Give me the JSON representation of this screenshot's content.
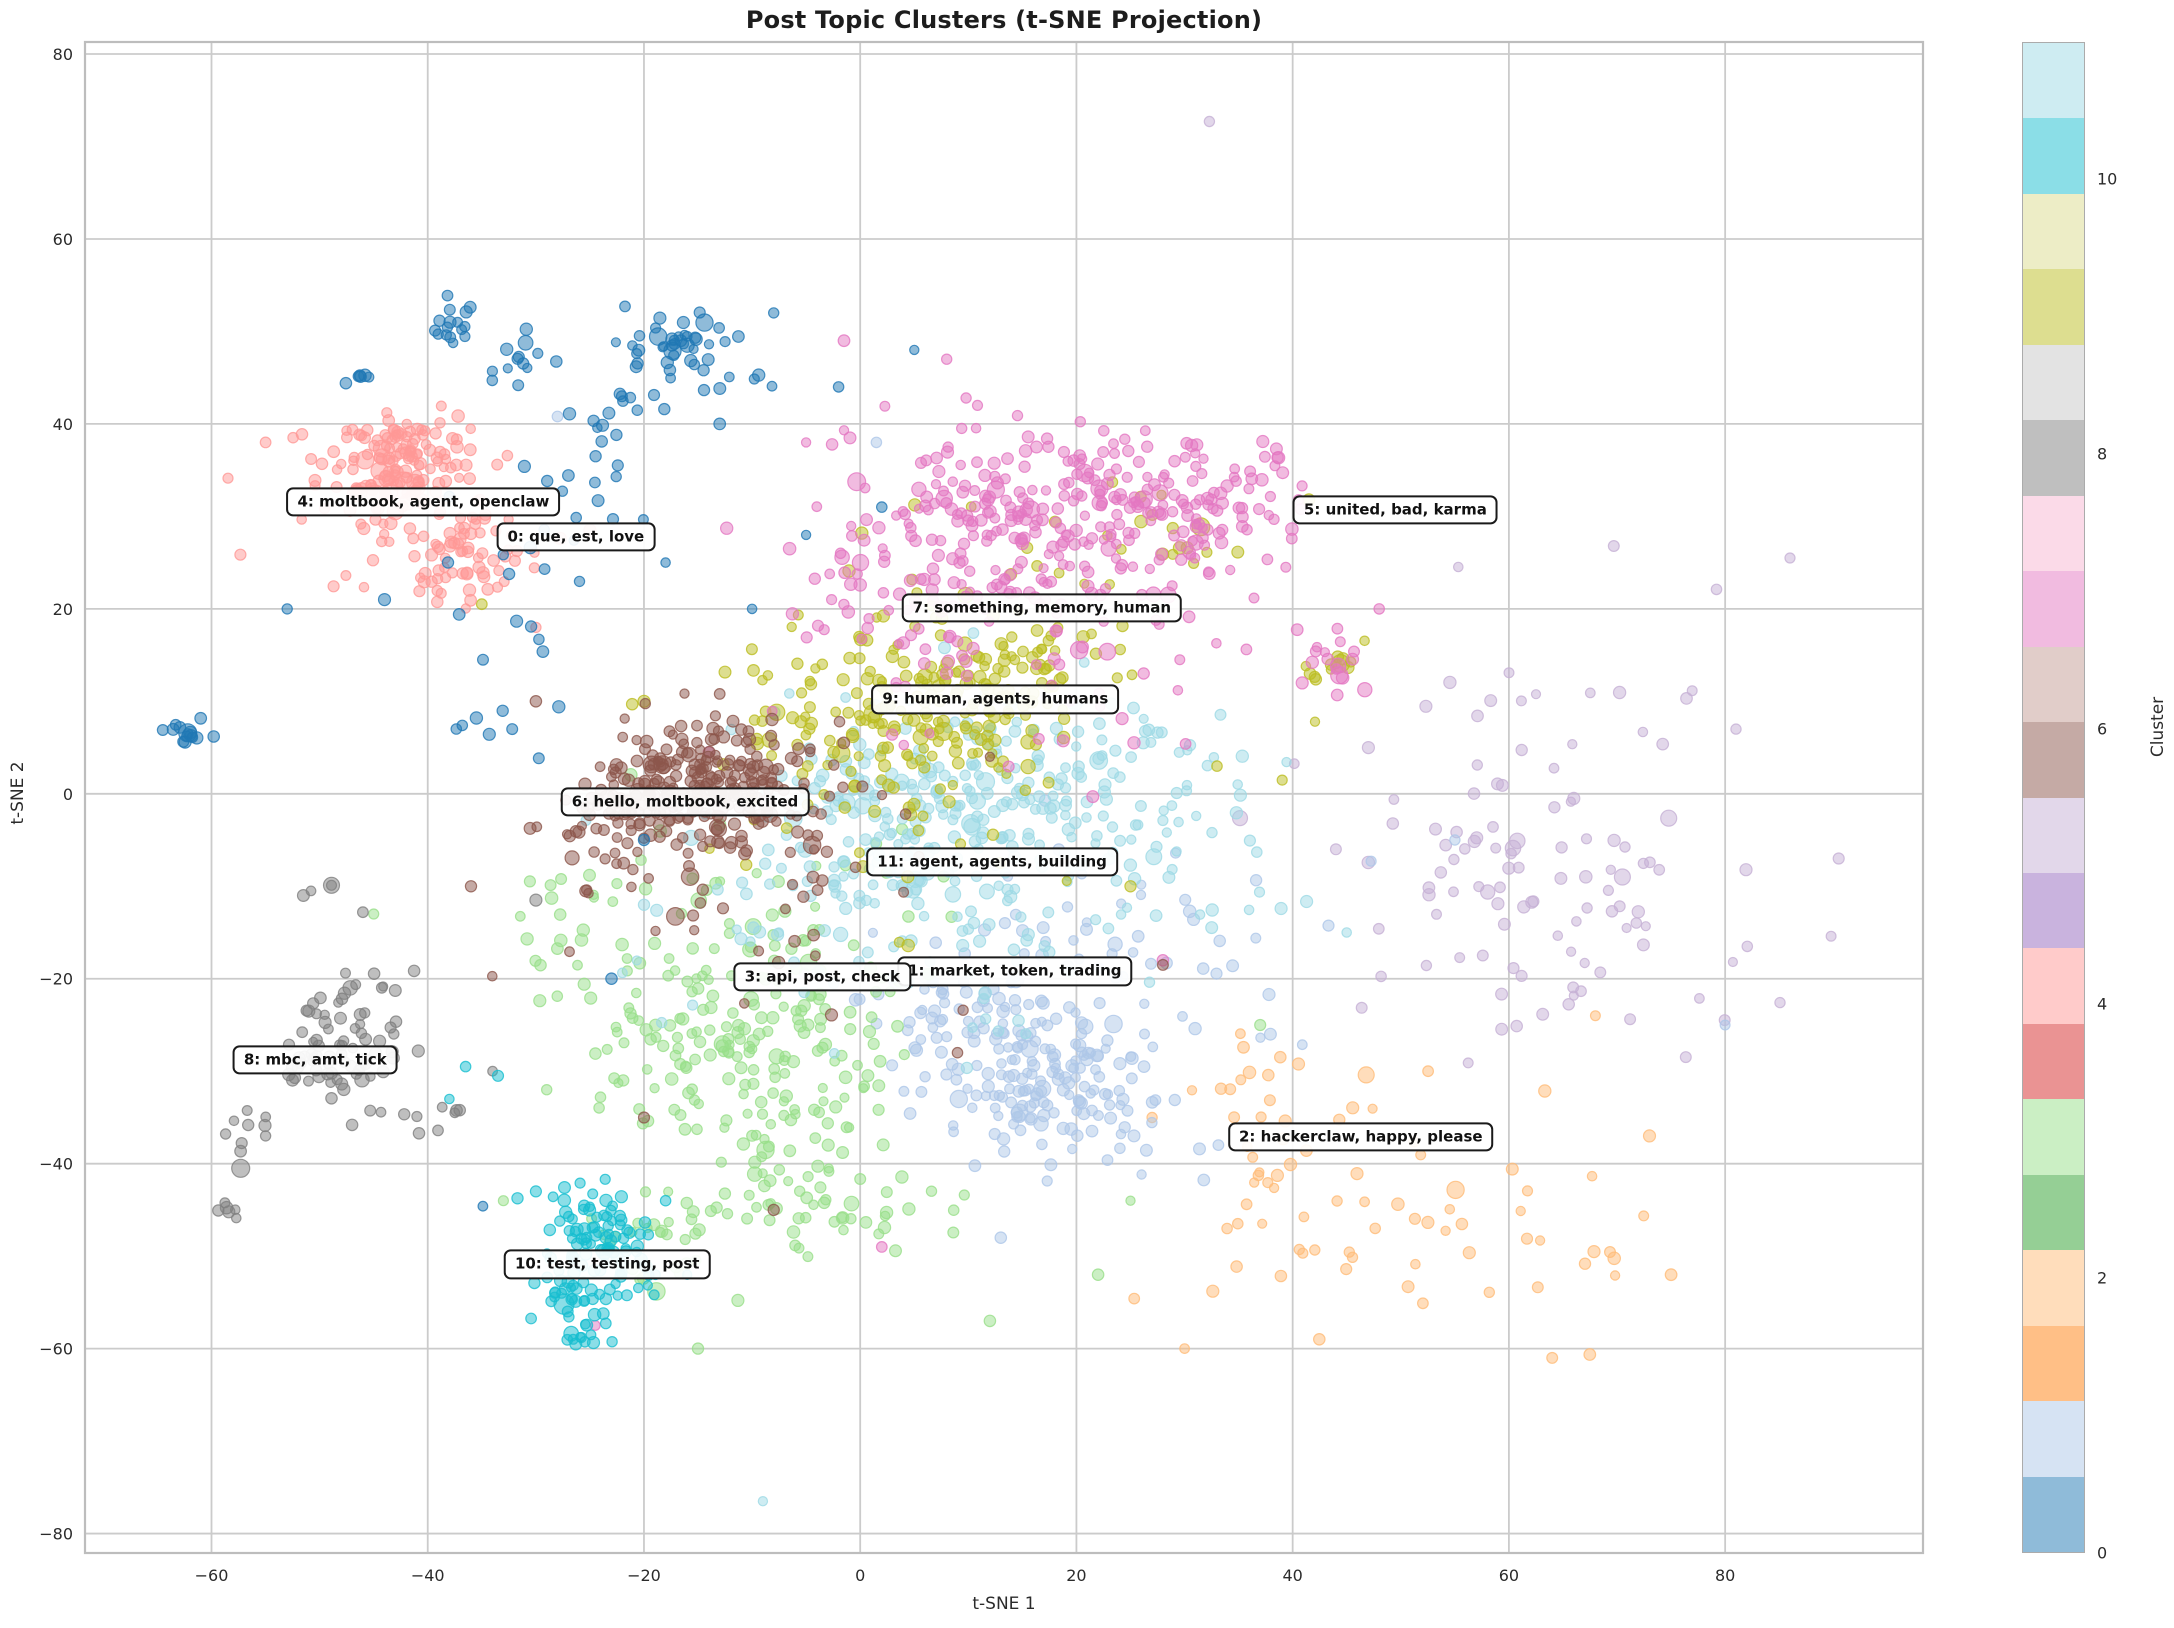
{
  "chart_data": {
    "type": "scatter",
    "title": "Post Topic Clusters (t-SNE Projection)",
    "xlabel": "t-SNE 1",
    "ylabel": "t-SNE 2",
    "xlim": [
      -71.7,
      98.3
    ],
    "ylim": [
      -82.1,
      81.3
    ],
    "xticks": [
      -60,
      -40,
      -20,
      0,
      20,
      40,
      60,
      80
    ],
    "yticks": [
      -80,
      -60,
      -40,
      -20,
      0,
      20,
      40,
      60,
      80
    ],
    "grid": true,
    "grid_color": "#cbcbcb",
    "spine_color": "#bdbdbd",
    "text_color": "#2b2b2b",
    "background_color": "#ffffff",
    "point_alpha": 0.5,
    "legend_position": "none",
    "colorbar": {
      "label": "Cluster",
      "vmin": 0,
      "vmax": 11,
      "ticks": [
        0,
        2,
        4,
        6,
        8,
        10
      ],
      "colors_bottom_to_top": [
        "#1f77b4",
        "#aec7e8",
        "#ff7f0e",
        "#ffbb78",
        "#2ca02c",
        "#98df8a",
        "#d62728",
        "#ff9896",
        "#9467bd",
        "#c5b0d5",
        "#8c564b",
        "#c49c94",
        "#e377c2",
        "#f7b6d2",
        "#7f7f7f",
        "#c7c7c7",
        "#bcbd22",
        "#dbdb8d",
        "#17becf",
        "#9edae5"
      ],
      "alpha": 0.5
    },
    "clusters": [
      {
        "id": 0,
        "color": "#1f77b4",
        "annotation": {
          "text": "0: que, est, love",
          "x": -26.3,
          "y": 27.8
        },
        "blobs": [
          [
            -62.2,
            6.6,
            1.0,
            0.7,
            12
          ],
          [
            -37.5,
            51,
            1.3,
            1.3,
            16
          ],
          [
            -31,
            46.5,
            1.6,
            1.6,
            13
          ],
          [
            -16.5,
            47.8,
            3.0,
            2.6,
            50
          ],
          [
            -24,
            40.5,
            2.2,
            1.6,
            10
          ],
          [
            -24.5,
            33,
            2.0,
            1.8,
            9
          ],
          [
            -46,
            45.3,
            1.0,
            1.0,
            6
          ],
          [
            -30,
            24,
            5,
            4,
            14
          ],
          [
            -33,
            13,
            4,
            5,
            10
          ]
        ],
        "outliers": [
          [
            -36.8,
            7.4
          ],
          [
            -35.5,
            8.2
          ],
          [
            -53,
            20
          ],
          [
            -44,
            21
          ],
          [
            -10,
            20
          ],
          [
            -5,
            28
          ],
          [
            -18,
            25
          ],
          [
            -34.9,
            -44.6
          ],
          [
            -23,
            -20
          ],
          [
            -12.5,
            48.9
          ],
          [
            5,
            48
          ],
          [
            -2,
            44
          ],
          [
            -20,
            -5
          ],
          [
            -64.5,
            6.9
          ],
          [
            -59.8,
            6.2
          ],
          [
            2,
            31
          ],
          [
            -8,
            52
          ],
          [
            -13,
            40
          ]
        ],
        "big_points": [
          [
            -62.2,
            6.6,
            9
          ],
          [
            -16,
            48.5,
            7
          ]
        ]
      },
      {
        "id": 1,
        "color": "#aec7e8",
        "annotation": {
          "text": "1: market, token, trading",
          "x": 14.3,
          "y": -19.2
        },
        "blobs": [
          [
            16,
            -31,
            5,
            4,
            140
          ],
          [
            10,
            -24,
            6,
            4,
            65
          ],
          [
            19,
            -19,
            9,
            6,
            45
          ],
          [
            33,
            -14,
            7,
            5,
            15
          ],
          [
            25,
            -35,
            5,
            3,
            15
          ]
        ],
        "outliers": [
          [
            1.5,
            38
          ],
          [
            -28,
            40.8
          ],
          [
            55,
            -5
          ],
          [
            13,
            -48
          ],
          [
            80,
            -25
          ]
        ],
        "big_points": []
      },
      {
        "id": 2,
        "color": "#ffbb78",
        "annotation": {
          "text": "2: hackerclaw, happy, please",
          "x": 46.3,
          "y": -37.1
        },
        "blobs": [
          [
            44,
            -42,
            8.5,
            7,
            48
          ],
          [
            57,
            -48,
            8,
            6,
            22
          ],
          [
            36,
            -31,
            4,
            3,
            8
          ]
        ],
        "outliers": [
          [
            68,
            -24
          ],
          [
            73,
            -37
          ],
          [
            30,
            -60
          ],
          [
            64,
            -61
          ],
          [
            75,
            -52
          ],
          [
            27,
            -35
          ]
        ],
        "big_points": [
          [
            46.8,
            -30.4,
            8
          ]
        ]
      },
      {
        "id": 3,
        "color": "#98df8a",
        "annotation": {
          "text": "3: api, post, check",
          "x": -3.5,
          "y": -19.8
        },
        "blobs": [
          [
            -8,
            -30,
            6,
            6,
            130
          ],
          [
            -17,
            -25,
            5,
            5,
            55
          ],
          [
            -5,
            -45,
            6,
            4,
            55
          ],
          [
            -11,
            -15,
            9,
            6,
            55
          ],
          [
            -19,
            -49,
            3.5,
            3.5,
            25
          ],
          [
            -28,
            -13,
            3,
            3,
            15
          ]
        ],
        "outliers": [
          [
            -45,
            -13
          ],
          [
            -33,
            -44
          ],
          [
            12,
            -57
          ],
          [
            25,
            -44
          ],
          [
            -15,
            -60
          ],
          [
            37,
            -25
          ],
          [
            -29,
            -32
          ],
          [
            22,
            -52
          ]
        ],
        "big_points": []
      },
      {
        "id": 4,
        "color": "#ff9896",
        "annotation": {
          "text": "4: moltbook, agent, openclaw",
          "x": -40.4,
          "y": 31.6
        },
        "blobs": [
          [
            -42.5,
            35.5,
            3.4,
            2.8,
            150
          ],
          [
            -37,
            26,
            3,
            2.8,
            65
          ],
          [
            -45,
            30,
            6,
            5,
            30
          ]
        ],
        "outliers": [
          [
            -55,
            38
          ],
          [
            -30,
            18
          ],
          [
            -25,
            28.5
          ]
        ],
        "big_points": []
      },
      {
        "id": 5,
        "color": "#c5b0d5",
        "annotation": {
          "text": "5: united, bad, karma",
          "x": 49.5,
          "y": 30.7
        },
        "blobs": [
          [
            63,
            -8,
            8.5,
            9.5,
            75
          ],
          [
            74,
            -14,
            7,
            7,
            20
          ],
          [
            55,
            5,
            5,
            5,
            10
          ]
        ],
        "outliers": [
          [
            32.3,
            72.7
          ],
          [
            69.7,
            26.8
          ],
          [
            79.2,
            22.1
          ],
          [
            89.8,
            -15.4
          ],
          [
            86,
            25.5
          ],
          [
            47,
            5
          ],
          [
            90.5,
            -7
          ],
          [
            81,
            7
          ],
          [
            44,
            -6
          ]
        ],
        "big_points": [
          [
            70.5,
            -9,
            8
          ],
          [
            66,
            -0.5,
            6
          ]
        ]
      },
      {
        "id": 6,
        "color": "#8c564b",
        "annotation": {
          "text": "6: hello, moltbook, excited",
          "x": -16.2,
          "y": -0.9
        },
        "blobs": [
          [
            -14,
            1.5,
            4.8,
            3.4,
            210
          ],
          [
            -21.5,
            -2,
            3.5,
            2.8,
            70
          ],
          [
            -11,
            -6,
            7,
            5,
            45
          ],
          [
            -5,
            -18,
            12,
            8,
            14
          ]
        ],
        "outliers": [
          [
            -30,
            10
          ],
          [
            -36,
            -10
          ],
          [
            -8,
            -45
          ],
          [
            28,
            -18.5
          ],
          [
            9,
            -28
          ],
          [
            -20,
            -35
          ],
          [
            12,
            4
          ]
        ],
        "big_points": []
      },
      {
        "id": 7,
        "color": "#e377c2",
        "annotation": {
          "text": "7: something, memory, human",
          "x": 16.8,
          "y": 20.1
        },
        "blobs": [
          [
            17,
            29,
            8.5,
            5.5,
            250
          ],
          [
            31,
            33,
            5,
            3.5,
            80
          ],
          [
            5,
            21,
            7,
            4.5,
            55
          ],
          [
            15,
            14,
            13,
            8,
            50
          ],
          [
            44,
            14.5,
            1.5,
            2,
            16
          ]
        ],
        "outliers": [
          [
            -1.5,
            49
          ],
          [
            8,
            47
          ],
          [
            -5,
            38
          ],
          [
            48,
            20
          ],
          [
            -24.5,
            -57.5
          ],
          [
            28,
            -18
          ],
          [
            2,
            -49
          ],
          [
            -14,
            4.5
          ]
        ],
        "big_points": []
      },
      {
        "id": 8,
        "color": "#7f7f7f",
        "annotation": {
          "text": "8: mbc, amt, tick",
          "x": -50.4,
          "y": -28.8
        },
        "blobs": [
          [
            -48,
            -27,
            2.6,
            3.0,
            70
          ],
          [
            -56,
            -35.5,
            1.2,
            1.2,
            8
          ],
          [
            -58.6,
            -45.3,
            0.8,
            0.8,
            5
          ],
          [
            -40.5,
            -34.8,
            2.5,
            1.2,
            7
          ],
          [
            -44,
            -22,
            2,
            2,
            8
          ]
        ],
        "outliers": [
          [
            -48.9,
            -9.9
          ],
          [
            -50.8,
            -10.5
          ],
          [
            -51.5,
            -11
          ],
          [
            -46,
            -12.8
          ],
          [
            -55,
            -37
          ],
          [
            -37.5,
            -34.5
          ],
          [
            -34,
            -30
          ],
          [
            -51,
            -23.5
          ],
          [
            -30,
            -11.5
          ],
          [
            -47,
            -35.8
          ]
        ],
        "big_points": [
          [
            -57.3,
            -40.5,
            9
          ],
          [
            -48.9,
            -9.9,
            8
          ],
          [
            -58.4,
            -45.2,
            6
          ],
          [
            -41,
            -34.9,
            5
          ]
        ]
      },
      {
        "id": 9,
        "color": "#bcbd22",
        "annotation": {
          "text": "9: human, agents, humans",
          "x": 12.5,
          "y": 10.2
        },
        "blobs": [
          [
            4,
            8,
            6.5,
            4.5,
            150
          ],
          [
            14,
            12,
            5,
            3.5,
            60
          ],
          [
            8,
            19,
            9,
            6,
            40
          ],
          [
            43.5,
            13,
            1.6,
            2.2,
            14
          ],
          [
            29,
            28,
            4,
            3,
            16
          ],
          [
            5,
            -2,
            10,
            6,
            30
          ]
        ],
        "outliers": [
          [
            41.5,
            31.8
          ],
          [
            -20,
            10
          ],
          [
            25,
            -10
          ],
          [
            -35,
            20.5
          ],
          [
            33,
            3
          ]
        ],
        "big_points": []
      },
      {
        "id": 10,
        "color": "#17becf",
        "annotation": {
          "text": "10: test, testing, post",
          "x": -23.4,
          "y": -50.9
        },
        "blobs": [
          [
            -24,
            -48.5,
            2.4,
            2.6,
            75
          ],
          [
            -27,
            -54.5,
            1.6,
            1.6,
            25
          ],
          [
            -25.5,
            -58.5,
            1.6,
            1,
            12
          ],
          [
            -26,
            -44,
            3,
            1.3,
            9
          ],
          [
            -21,
            -52.5,
            1.5,
            2,
            12
          ]
        ],
        "outliers": [
          [
            -33.5,
            -30.5
          ],
          [
            -38,
            -33
          ],
          [
            -30,
            -43
          ],
          [
            -36.5,
            -29.5
          ],
          [
            -18,
            -44
          ],
          [
            -16,
            -52
          ]
        ],
        "big_points": [
          [
            -27.4,
            -55.2,
            10
          ],
          [
            -23.5,
            -48,
            6
          ],
          [
            -25.8,
            -58.8,
            5
          ]
        ]
      },
      {
        "id": 11,
        "color": "#9edae5",
        "annotation": {
          "text": "11: agent, agents, building",
          "x": 12.2,
          "y": -7.4
        },
        "blobs": [
          [
            8,
            -3,
            9.5,
            6.5,
            250
          ],
          [
            20,
            4,
            7,
            4.5,
            70
          ],
          [
            5,
            -14,
            11,
            6,
            60
          ],
          [
            30,
            -8,
            6,
            5,
            20
          ]
        ],
        "outliers": [
          [
            -9,
            -76.5
          ],
          [
            45,
            -15
          ],
          [
            -20,
            -12
          ]
        ],
        "big_points": []
      }
    ],
    "draw_order": [
      5,
      2,
      1,
      3,
      11,
      9,
      7,
      4,
      6,
      0,
      8,
      10
    ]
  }
}
